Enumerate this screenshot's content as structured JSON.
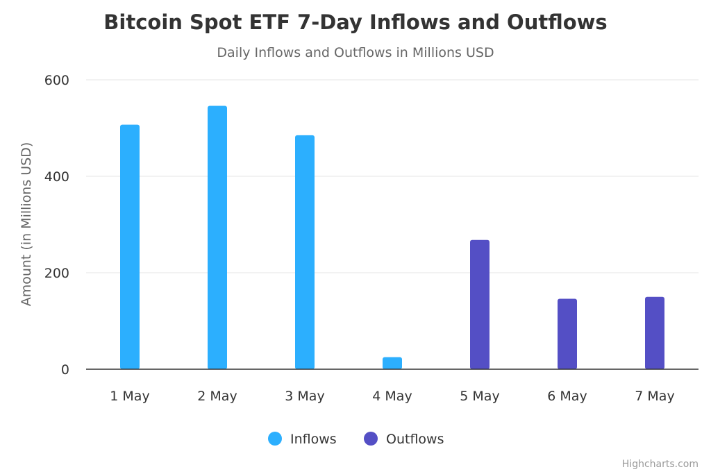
{
  "chart_data": {
    "type": "bar",
    "title": "Bitcoin Spot ETF 7-Day Inflows and Outflows",
    "subtitle": "Daily Inflows and Outflows in Millions USD",
    "xlabel": "",
    "ylabel": "Amount (in Millions USD)",
    "ylim": [
      0,
      600
    ],
    "yticks": [
      0,
      200,
      400,
      600
    ],
    "grid": true,
    "legend_position": "bottom-center",
    "categories": [
      "1 May",
      "2 May",
      "3 May",
      "4 May",
      "5 May",
      "6 May",
      "7 May"
    ],
    "series": [
      {
        "name": "Inflows",
        "color": "#2CAFFE",
        "values": [
          507,
          546,
          485,
          25,
          null,
          null,
          null
        ]
      },
      {
        "name": "Outflows",
        "color": "#544FC5",
        "values": [
          null,
          null,
          null,
          null,
          268,
          146,
          150
        ]
      }
    ]
  },
  "credits": "Highcharts.com"
}
